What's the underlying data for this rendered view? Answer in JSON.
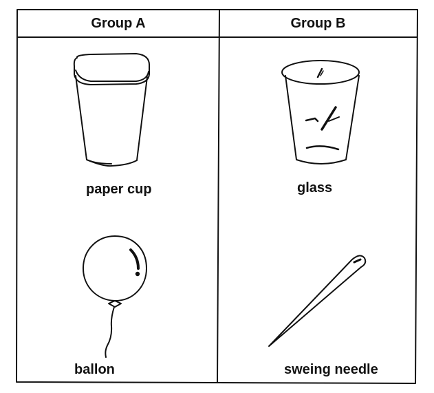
{
  "groups": [
    {
      "title": "Group A",
      "items": [
        {
          "label": "paper cup",
          "icon": "paper-cup-icon"
        },
        {
          "label": "ballon",
          "icon": "balloon-icon"
        }
      ]
    },
    {
      "title": "Group B",
      "items": [
        {
          "label": "glass",
          "icon": "glass-icon"
        },
        {
          "label": "sweing needle",
          "icon": "sewing-needle-icon"
        }
      ]
    }
  ],
  "colors": {
    "line": "#111111",
    "background": "#ffffff"
  }
}
